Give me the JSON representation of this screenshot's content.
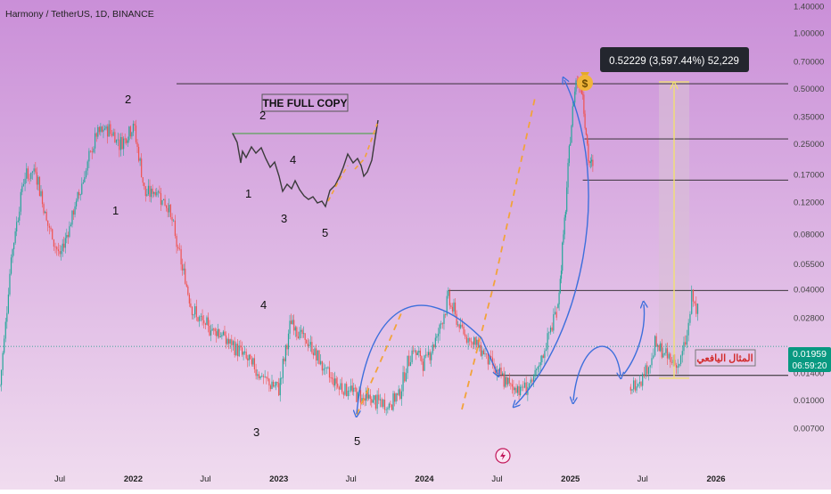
{
  "header": {
    "title": "Harmony / TetherUS, 1D, BINANCE"
  },
  "colors": {
    "bg_top": "#ca8fd8",
    "bg_bottom": "#f0dcef",
    "candle_up": "#26a69a",
    "candle_down": "#ef5350",
    "fractal_line": "#3a3a3a",
    "arrow_blue": "#3d6fdc",
    "dash_orange": "#f2a33a",
    "level_line": "#222222",
    "measure_band": "#d8bfd6",
    "measure_arrow": "#f3e36a",
    "price_badge": "#089981"
  },
  "chart_data": {
    "type": "candlestick",
    "symbol": "Harmony / TetherUS",
    "interval": "1D",
    "exchange": "BINANCE",
    "y_scale": "log",
    "y_ticks": [
      "1.40000",
      "1.00000",
      "0.70000",
      "0.50000",
      "0.35000",
      "0.25000",
      "0.17000",
      "0.12000",
      "0.08000",
      "0.05500",
      "0.04000",
      "0.02800",
      "0.01400",
      "0.01000",
      "0.00700"
    ],
    "y_tick_values": [
      1.4,
      1.0,
      0.7,
      0.5,
      0.35,
      0.25,
      0.17,
      0.12,
      0.08,
      0.055,
      0.04,
      0.028,
      0.014,
      0.01,
      0.007
    ],
    "x_ticks": [
      "Jul",
      "2022",
      "Jul",
      "2023",
      "Jul",
      "2024",
      "Jul",
      "2025",
      "Jul",
      "2026"
    ],
    "x_tick_values": [
      "2021-07",
      "2022-01",
      "2022-07",
      "2023-01",
      "2023-07",
      "2024-01",
      "2024-07",
      "2025-01",
      "2025-07",
      "2026-01"
    ],
    "x_range": [
      "2021-02",
      "2026-07"
    ],
    "y_range": [
      0.0058,
      1.45
    ],
    "series": [
      {
        "values": [
          [
            "2021-02",
            0.012
          ],
          [
            "2021-03",
            0.06
          ],
          [
            "2021-04",
            0.16
          ],
          [
            "2021-05",
            0.18
          ],
          [
            "2021-06",
            0.09
          ],
          [
            "2021-07",
            0.06
          ],
          [
            "2021-08",
            0.1
          ],
          [
            "2021-09",
            0.17
          ],
          [
            "2021-10",
            0.28
          ],
          [
            "2021-11",
            0.3
          ],
          [
            "2021-12",
            0.25
          ],
          [
            "2022-01",
            0.32
          ],
          [
            "2022-02",
            0.13
          ],
          [
            "2022-03",
            0.14
          ],
          [
            "2022-04",
            0.11
          ],
          [
            "2022-05",
            0.055
          ],
          [
            "2022-06",
            0.03
          ],
          [
            "2022-07",
            0.025
          ],
          [
            "2022-08",
            0.024
          ],
          [
            "2022-09",
            0.02
          ],
          [
            "2022-10",
            0.018
          ],
          [
            "2022-11",
            0.015
          ],
          [
            "2022-12",
            0.0125
          ],
          [
            "2023-01",
            0.0115
          ],
          [
            "2023-02",
            0.027
          ],
          [
            "2023-03",
            0.022
          ],
          [
            "2023-04",
            0.018
          ],
          [
            "2023-05",
            0.014
          ],
          [
            "2023-06",
            0.012
          ],
          [
            "2023-07",
            0.0112
          ],
          [
            "2023-08",
            0.0104
          ],
          [
            "2023-09",
            0.0098
          ],
          [
            "2023-10",
            0.0092
          ],
          [
            "2023-11",
            0.0112
          ],
          [
            "2023-12",
            0.019
          ],
          [
            "2024-01",
            0.016
          ],
          [
            "2024-02",
            0.022
          ],
          [
            "2024-03",
            0.036
          ],
          [
            "2024-04",
            0.024
          ],
          [
            "2024-05",
            0.021
          ],
          [
            "2024-06",
            0.018
          ],
          [
            "2024-07",
            0.014
          ],
          [
            "2024-08",
            0.012
          ],
          [
            "2024-09",
            0.0115
          ],
          [
            "2024-10",
            0.0125
          ],
          [
            "2024-11",
            0.02
          ],
          [
            "2024-12",
            0.033
          ]
        ]
      },
      {
        "values": [
          [
            "2024-12",
            0.033
          ],
          [
            "2024-12-20",
            0.11
          ],
          [
            "2025-01",
            0.28
          ],
          [
            "2025-01-15",
            0.57
          ],
          [
            "2025-02",
            0.48
          ],
          [
            "2025-02-15",
            0.2
          ],
          [
            "2025-03",
            0.18
          ]
        ]
      },
      {
        "values": [
          [
            "2025-06",
            0.0113
          ],
          [
            "2025-07",
            0.0138
          ],
          [
            "2025-07-20",
            0.016
          ],
          [
            "2025-08",
            0.02
          ],
          [
            "2025-09",
            0.017
          ],
          [
            "2025-10",
            0.0155
          ],
          [
            "2025-10-20",
            0.022
          ],
          [
            "2025-11",
            0.036
          ],
          [
            "2025-11-20",
            0.029
          ]
        ]
      }
    ],
    "levels": [
      0.53,
      0.265,
      0.158,
      0.0395,
      0.0136
    ],
    "annotations": [
      {
        "text": "2",
        "x": "2022-01",
        "y": 0.45
      },
      {
        "text": "1",
        "x": "2021-12",
        "y": 0.12
      },
      {
        "text": "4",
        "x": "2022-12",
        "y": 0.032
      },
      {
        "text": "3",
        "x": "2022-12",
        "y": 0.0074
      },
      {
        "text": "5",
        "x": "2023-10",
        "y": 0.0068
      },
      {
        "text": "THE FULL COPY",
        "x": "2022-12",
        "y": 0.43
      },
      {
        "text": "0.52229 (3,597.44%) 52,229",
        "x": "2025-05",
        "y": 0.72
      },
      {
        "text": "المثال اليافعي",
        "x": "2026-01",
        "y": 0.0176
      }
    ],
    "inset_labels": [
      "2",
      "4",
      "1",
      "3",
      "5"
    ],
    "current_price": "0.01959",
    "countdown": "06:59:20"
  }
}
